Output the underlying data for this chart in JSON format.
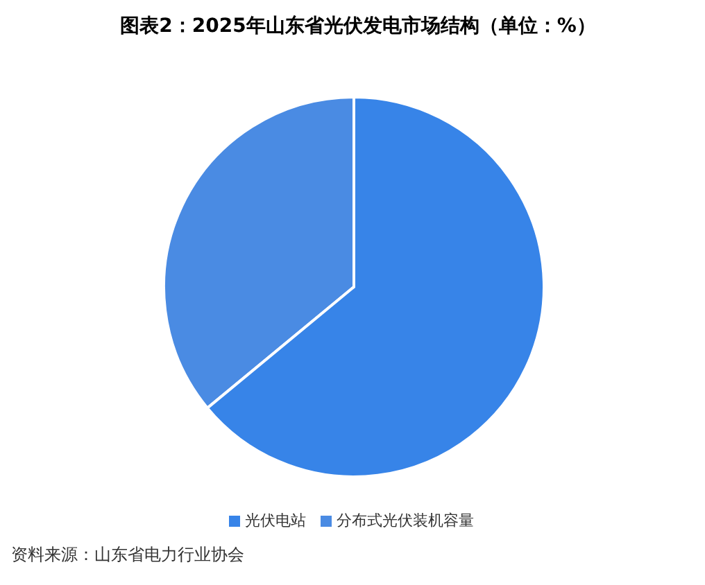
{
  "chart_data": {
    "type": "pie",
    "title": "图表2：2025年山东省光伏发电市场结构（单位：%）",
    "categories": [
      "分布式光伏装机容量",
      "光伏电站"
    ],
    "values": [
      36,
      64
    ],
    "colors": [
      "#4a8be3",
      "#3784e8"
    ],
    "legend": "bottom",
    "annotations": [
      "资料来源：山东省电力行业协会"
    ]
  }
}
